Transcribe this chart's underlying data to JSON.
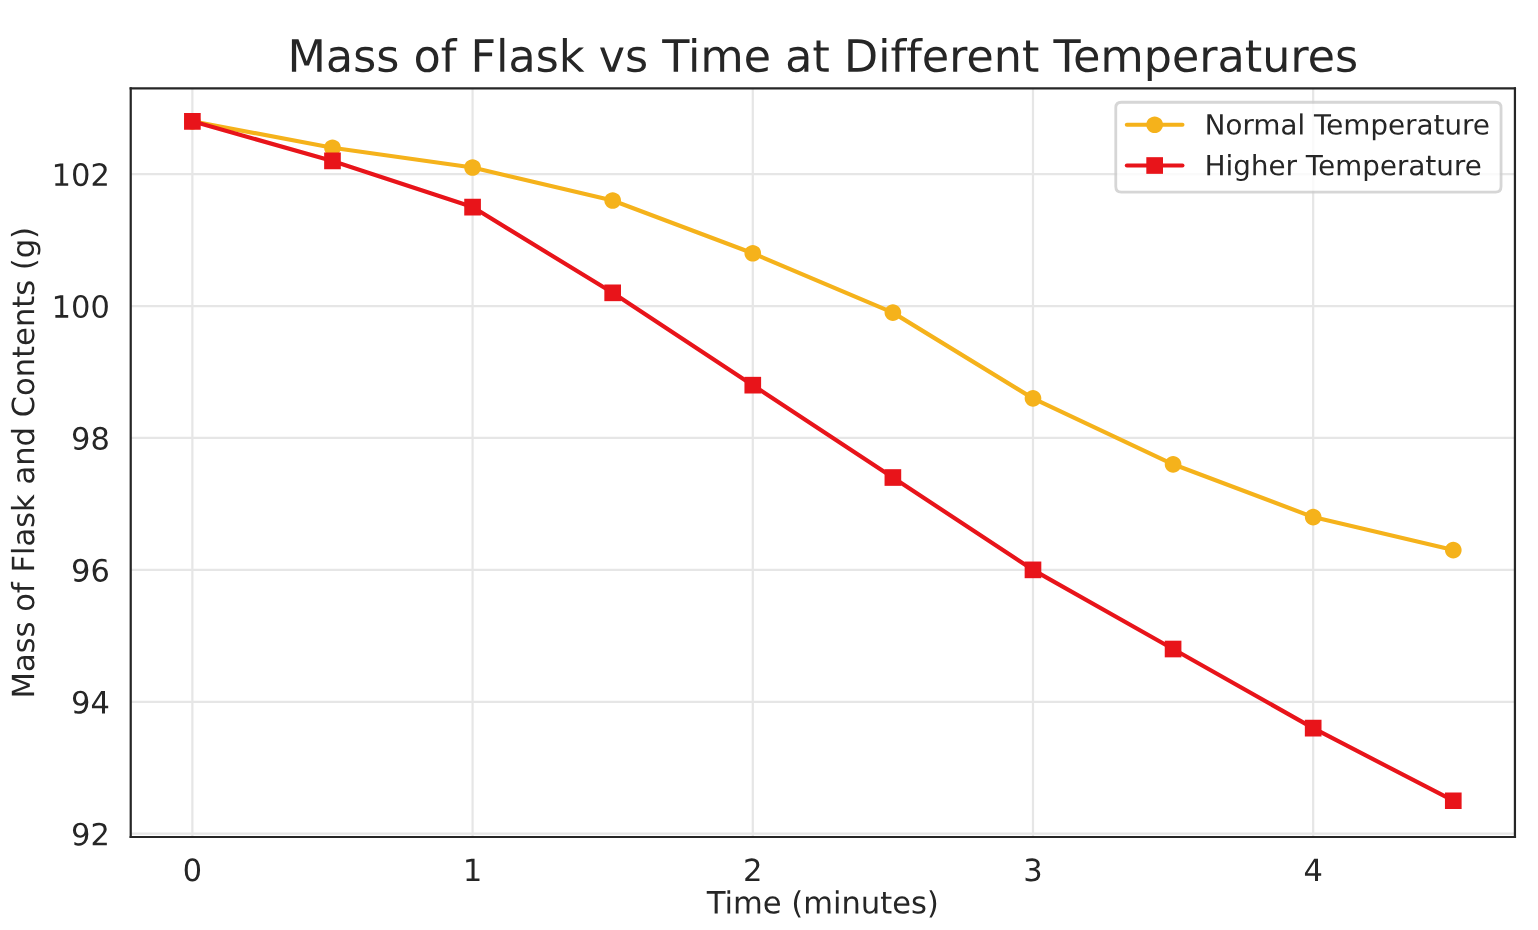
{
  "chart_data": {
    "type": "line",
    "title": "Mass of Flask vs Time at Different Temperatures",
    "xlabel": "Time (minutes)",
    "ylabel": "Mass of Flask and Contents (g)",
    "x": [
      0,
      0.5,
      1,
      1.5,
      2,
      2.5,
      3,
      3.5,
      4,
      4.5
    ],
    "series": [
      {
        "name": "Normal Temperature",
        "color": "#f5b21b",
        "marker": "circle",
        "values": [
          102.8,
          102.4,
          102.1,
          101.6,
          100.8,
          99.9,
          98.6,
          97.6,
          96.8,
          96.3
        ]
      },
      {
        "name": "Higher Temperature",
        "color": "#e8141a",
        "marker": "square",
        "values": [
          102.8,
          102.2,
          101.5,
          100.2,
          98.8,
          97.4,
          96.0,
          94.8,
          93.6,
          92.5
        ]
      }
    ],
    "xlim": [
      -0.22,
      4.72
    ],
    "ylim": [
      91.95,
      103.3
    ],
    "xticks": [
      0,
      1,
      2,
      3,
      4
    ],
    "yticks": [
      92,
      94,
      96,
      98,
      100,
      102
    ],
    "grid": true,
    "legend": "top right",
    "line_style": "solid"
  }
}
